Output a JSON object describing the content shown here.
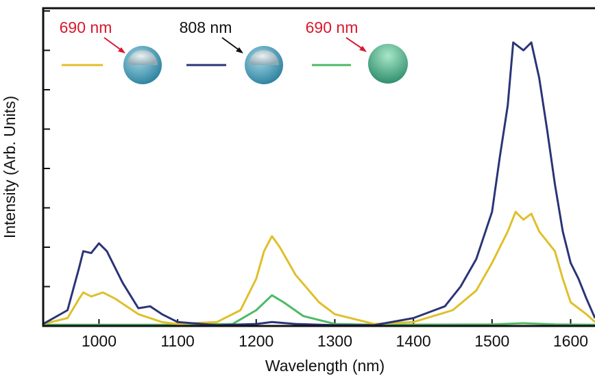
{
  "chart_data": {
    "type": "line",
    "x_label": "Wavelength (nm)",
    "y_label": "Intensity (Arb. Units)",
    "xlim": [
      929,
      1631
    ],
    "xticks": [
      1000,
      1100,
      1200,
      1300,
      1400,
      1500,
      1600
    ],
    "ylim": [
      0,
      8.07
    ],
    "yticks": [
      0,
      1,
      2,
      3,
      4,
      5,
      6,
      7,
      8
    ],
    "series": [
      {
        "name": "690 nm",
        "color": "#e0bf2a",
        "x": [
          929,
          960,
          975,
          980,
          990,
          1005,
          1020,
          1050,
          1080,
          1100,
          1150,
          1180,
          1200,
          1210,
          1220,
          1230,
          1250,
          1280,
          1300,
          1350,
          1400,
          1450,
          1480,
          1500,
          1520,
          1530,
          1540,
          1550,
          1560,
          1580,
          1590,
          1600,
          1620,
          1631
        ],
        "values": [
          0.05,
          0.2,
          0.7,
          0.85,
          0.75,
          0.85,
          0.7,
          0.3,
          0.1,
          0.05,
          0.1,
          0.4,
          1.2,
          1.9,
          2.28,
          2.0,
          1.3,
          0.6,
          0.3,
          0.05,
          0.1,
          0.4,
          0.9,
          1.6,
          2.4,
          2.9,
          2.7,
          2.85,
          2.4,
          1.9,
          1.2,
          0.6,
          0.3,
          0.1
        ]
      },
      {
        "name": "808 nm",
        "color": "#2b3476",
        "x": [
          929,
          960,
          975,
          980,
          990,
          1000,
          1010,
          1030,
          1050,
          1065,
          1080,
          1100,
          1150,
          1200,
          1220,
          1250,
          1300,
          1350,
          1400,
          1440,
          1460,
          1480,
          1500,
          1510,
          1520,
          1527,
          1540,
          1550,
          1560,
          1570,
          1580,
          1590,
          1600,
          1610,
          1620,
          1631
        ],
        "values": [
          0.05,
          0.4,
          1.5,
          1.9,
          1.85,
          2.1,
          1.9,
          1.1,
          0.45,
          0.5,
          0.3,
          0.1,
          0.02,
          0.05,
          0.1,
          0.05,
          0.02,
          0.02,
          0.2,
          0.5,
          1.0,
          1.7,
          2.9,
          4.3,
          5.6,
          7.2,
          7.0,
          7.2,
          6.3,
          5.0,
          3.6,
          2.4,
          1.6,
          1.2,
          0.7,
          0.2
        ]
      },
      {
        "name": "690 nm",
        "color": "#4cba64",
        "x": [
          929,
          1100,
          1170,
          1200,
          1220,
          1235,
          1260,
          1300,
          1350,
          1500,
          1540,
          1580,
          1631
        ],
        "values": [
          0.03,
          0.03,
          0.05,
          0.4,
          0.78,
          0.6,
          0.25,
          0.05,
          0.03,
          0.04,
          0.07,
          0.04,
          0.03
        ]
      }
    ]
  }
}
